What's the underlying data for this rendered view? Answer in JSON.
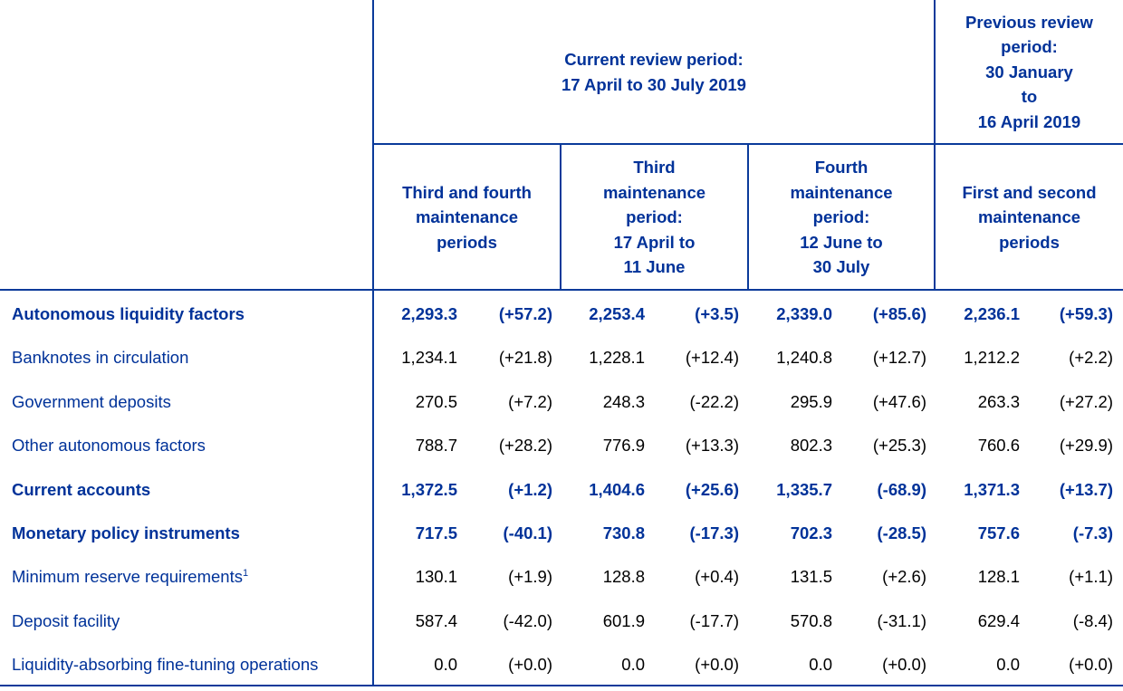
{
  "header": {
    "current_period": "Current review period:\n17 April to 30 July 2019",
    "previous_period": "Previous review\nperiod:\n30 January\nto\n16 April 2019",
    "sub_columns": [
      "Third and fourth\nmaintenance\nperiods",
      "Third\nmaintenance\nperiod:\n17 April to\n11 June",
      "Fourth\nmaintenance\nperiod:\n12 June to\n30 July",
      "First and second\nmaintenance\nperiods"
    ]
  },
  "rows": [
    {
      "label": "Autonomous liquidity factors",
      "bold": true,
      "values": [
        "2,293.3",
        "(+57.2)",
        "2,253.4",
        "(+3.5)",
        "2,339.0",
        "(+85.6)",
        "2,236.1",
        "(+59.3)"
      ]
    },
    {
      "label": "Banknotes in circulation",
      "bold": false,
      "values": [
        "1,234.1",
        "(+21.8)",
        "1,228.1",
        "(+12.4)",
        "1,240.8",
        "(+12.7)",
        "1,212.2",
        "(+2.2)"
      ]
    },
    {
      "label": "Government deposits",
      "bold": false,
      "values": [
        "270.5",
        "(+7.2)",
        "248.3",
        "(-22.2)",
        "295.9",
        "(+47.6)",
        "263.3",
        "(+27.2)"
      ]
    },
    {
      "label": "Other autonomous factors",
      "bold": false,
      "values": [
        "788.7",
        "(+28.2)",
        "776.9",
        "(+13.3)",
        "802.3",
        "(+25.3)",
        "760.6",
        "(+29.9)"
      ]
    },
    {
      "label": "Current accounts",
      "bold": true,
      "values": [
        "1,372.5",
        "(+1.2)",
        "1,404.6",
        "(+25.6)",
        "1,335.7",
        "(-68.9)",
        "1,371.3",
        "(+13.7)"
      ]
    },
    {
      "label": "Monetary policy instruments",
      "bold": true,
      "values": [
        "717.5",
        "(-40.1)",
        "730.8",
        "(-17.3)",
        "702.3",
        "(-28.5)",
        "757.6",
        "(-7.3)"
      ]
    },
    {
      "label": "Minimum reserve requirements",
      "footnote": "1",
      "bold": false,
      "values": [
        "130.1",
        "(+1.9)",
        "128.8",
        "(+0.4)",
        "131.5",
        "(+2.6)",
        "128.1",
        "(+1.1)"
      ]
    },
    {
      "label": "Deposit facility",
      "bold": false,
      "values": [
        "587.4",
        "(-42.0)",
        "601.9",
        "(-17.7)",
        "570.8",
        "(-31.1)",
        "629.4",
        "(-8.4)"
      ]
    },
    {
      "label": "Liquidity-absorbing fine-tuning operations",
      "bold": false,
      "values": [
        "0.0",
        "(+0.0)",
        "0.0",
        "(+0.0)",
        "0.0",
        "(+0.0)",
        "0.0",
        "(+0.0)"
      ]
    }
  ]
}
